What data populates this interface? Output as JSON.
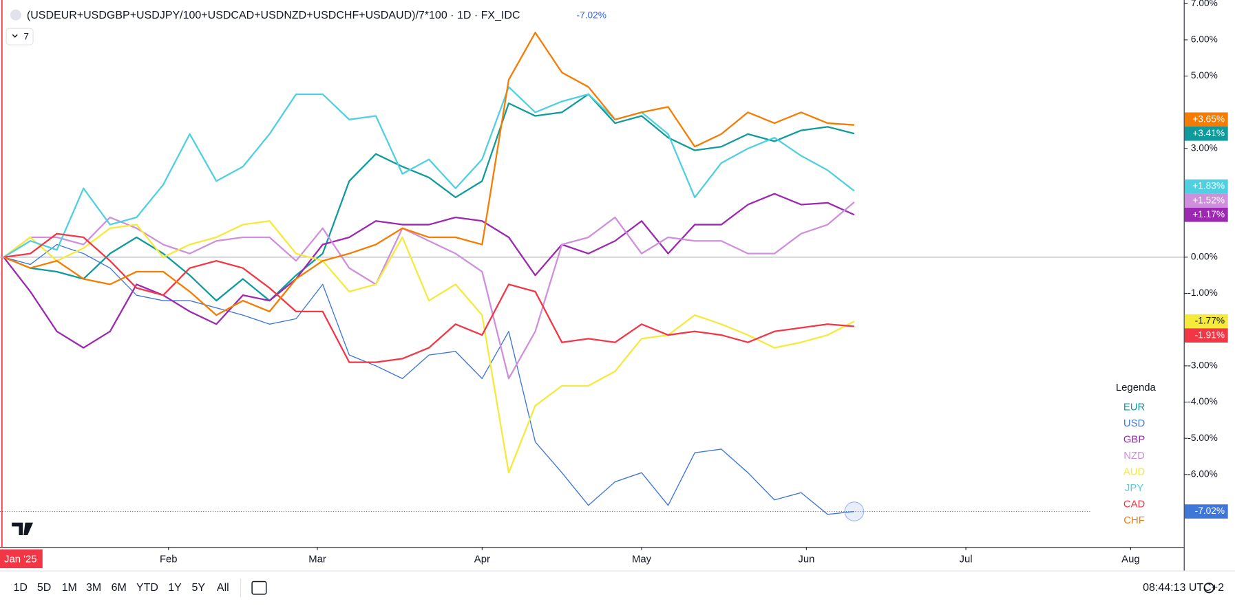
{
  "chart_data": {
    "type": "line",
    "title": "(USDEUR+USDGBP+USDJPY/100+USDCAD+USDNZD+USDCHF+USDAUD)/7*100 · 1D · FX_IDC",
    "title_change": "-7.02%",
    "collapse_count": "7",
    "legend_title": "Legenda",
    "x": [
      0,
      5,
      10,
      15,
      20,
      25,
      30,
      35,
      40,
      45,
      50,
      55,
      60,
      65,
      70,
      75,
      80,
      85,
      90,
      95,
      100,
      105,
      110,
      115,
      120,
      125,
      130,
      135,
      140,
      145,
      150,
      155,
      160
    ],
    "xlim": [
      -0.7,
      222
    ],
    "xticks": [
      {
        "value": 0,
        "label": "Jan '25"
      },
      {
        "value": 31,
        "label": "Feb"
      },
      {
        "value": 59,
        "label": "Mar"
      },
      {
        "value": 90,
        "label": "Apr"
      },
      {
        "value": 120,
        "label": "May"
      },
      {
        "value": 151,
        "label": "Jun"
      },
      {
        "value": 181,
        "label": "Jul"
      },
      {
        "value": 212,
        "label": "Aug"
      }
    ],
    "ylim": [
      -8.0,
      7.1
    ],
    "yticks": [
      {
        "value": 7,
        "label": "7.00%"
      },
      {
        "value": 6,
        "label": "6.00%"
      },
      {
        "value": 5,
        "label": "5.00%"
      },
      {
        "value": 3,
        "label": "3.00%"
      },
      {
        "value": 0,
        "label": "0.00%"
      },
      {
        "value": -1,
        "label": "-1.00%"
      },
      {
        "value": -3,
        "label": "-3.00%"
      },
      {
        "value": -4,
        "label": "-4.00%"
      },
      {
        "value": -5,
        "label": "-5.00%"
      },
      {
        "value": -6,
        "label": "-6.00%"
      }
    ],
    "series": [
      {
        "name": "EUR",
        "color": "#0f9a9c",
        "last_label": "+3.41%",
        "values": [
          0,
          -0.3,
          -0.4,
          -0.6,
          0.1,
          0.55,
          0.1,
          -0.5,
          -1.2,
          -0.6,
          -1.2,
          -0.5,
          0.1,
          2.1,
          2.85,
          2.5,
          2.2,
          1.65,
          2.1,
          4.25,
          3.9,
          4.0,
          4.5,
          3.7,
          3.9,
          3.3,
          2.95,
          3.05,
          3.4,
          3.2,
          3.5,
          3.6,
          3.41
        ]
      },
      {
        "name": "USD",
        "color": "#3f77d8",
        "last_label": "-7.02%",
        "values": [
          0,
          -0.2,
          0.35,
          0.1,
          -0.3,
          -1.05,
          -1.2,
          -1.2,
          -1.4,
          -1.6,
          -1.85,
          -1.7,
          -0.75,
          -2.7,
          -3.0,
          -3.35,
          -2.7,
          -2.6,
          -3.35,
          -2.05,
          -5.1,
          -5.95,
          -6.85,
          -6.2,
          -5.95,
          -6.85,
          -5.4,
          -5.3,
          -5.95,
          -6.7,
          -6.5,
          -7.1,
          -7.02
        ]
      },
      {
        "name": "GBP",
        "color": "#9c27b0",
        "last_label": "+1.17%",
        "values": [
          0,
          -0.95,
          -2.05,
          -2.5,
          -2.05,
          -0.75,
          -1.05,
          -1.5,
          -1.85,
          -1.05,
          -1.2,
          -0.6,
          0.35,
          0.55,
          1.0,
          0.9,
          0.9,
          1.1,
          1.0,
          0.55,
          -0.5,
          0.35,
          0.1,
          0.45,
          1.0,
          0.1,
          0.9,
          0.9,
          1.45,
          1.75,
          1.45,
          1.5,
          1.17
        ]
      },
      {
        "name": "NZD",
        "color": "#ce8fdc",
        "last_label": "+1.52%",
        "values": [
          0,
          0.55,
          0.55,
          0.35,
          1.1,
          0.8,
          0.35,
          0.1,
          0.45,
          0.55,
          0.55,
          -0.1,
          0.8,
          -0.3,
          -0.75,
          0.8,
          0.45,
          0.1,
          -0.4,
          -3.35,
          -2.05,
          0.35,
          0.55,
          1.1,
          0.1,
          0.55,
          0.45,
          0.45,
          0.1,
          0.1,
          0.65,
          0.9,
          1.52
        ]
      },
      {
        "name": "AUD",
        "color": "#f5e93b",
        "last_label": "-1.77%",
        "values": [
          0,
          0.55,
          -0.1,
          0.25,
          0.8,
          0.9,
          0.0,
          0.35,
          0.55,
          0.9,
          1.0,
          0.1,
          -0.1,
          -0.95,
          -0.75,
          0.55,
          -1.2,
          -0.75,
          -1.6,
          -5.95,
          -4.1,
          -3.55,
          -3.55,
          -3.15,
          -2.25,
          -2.15,
          -1.6,
          -1.85,
          -2.15,
          -2.5,
          -2.35,
          -2.15,
          -1.77
        ]
      },
      {
        "name": "JPY",
        "color": "#4fd0e0",
        "last_label": "+1.83%",
        "values": [
          0,
          0.45,
          0.2,
          1.9,
          0.9,
          1.1,
          2.0,
          3.4,
          2.1,
          2.5,
          3.4,
          4.5,
          4.5,
          3.8,
          3.9,
          2.3,
          2.7,
          1.9,
          2.7,
          4.7,
          4.0,
          4.3,
          4.5,
          3.8,
          4.0,
          3.4,
          1.65,
          2.6,
          3.0,
          3.3,
          2.8,
          2.4,
          1.83
        ]
      },
      {
        "name": "CAD",
        "color": "#f23645",
        "last_label": "-1.91%",
        "values": [
          0,
          0.1,
          0.65,
          0.55,
          -0.1,
          -0.85,
          -1.05,
          -0.3,
          -0.1,
          -0.3,
          -0.85,
          -1.5,
          -1.5,
          -2.9,
          -2.9,
          -2.8,
          -2.5,
          -1.85,
          -2.15,
          -0.75,
          -0.95,
          -2.35,
          -2.25,
          -2.35,
          -1.85,
          -2.15,
          -2.05,
          -2.15,
          -2.35,
          -2.05,
          -1.95,
          -1.85,
          -1.91
        ]
      },
      {
        "name": "CHF",
        "color": "#f57c00",
        "last_label": "+3.65%",
        "values": [
          0,
          -0.3,
          -0.1,
          -0.6,
          -0.75,
          -0.4,
          -0.4,
          -0.95,
          -1.6,
          -1.2,
          -1.5,
          -0.6,
          -0.1,
          0.1,
          0.35,
          0.8,
          0.55,
          0.55,
          0.35,
          4.9,
          6.2,
          5.1,
          4.7,
          3.8,
          4.0,
          4.15,
          3.05,
          3.4,
          4.0,
          3.7,
          4.0,
          3.7,
          3.65
        ]
      }
    ]
  },
  "toolbar": {
    "ranges": [
      "1D",
      "5D",
      "1M",
      "3M",
      "6M",
      "YTD",
      "1Y",
      "5Y",
      "All"
    ],
    "time": "08:44:13 UTC+2"
  }
}
